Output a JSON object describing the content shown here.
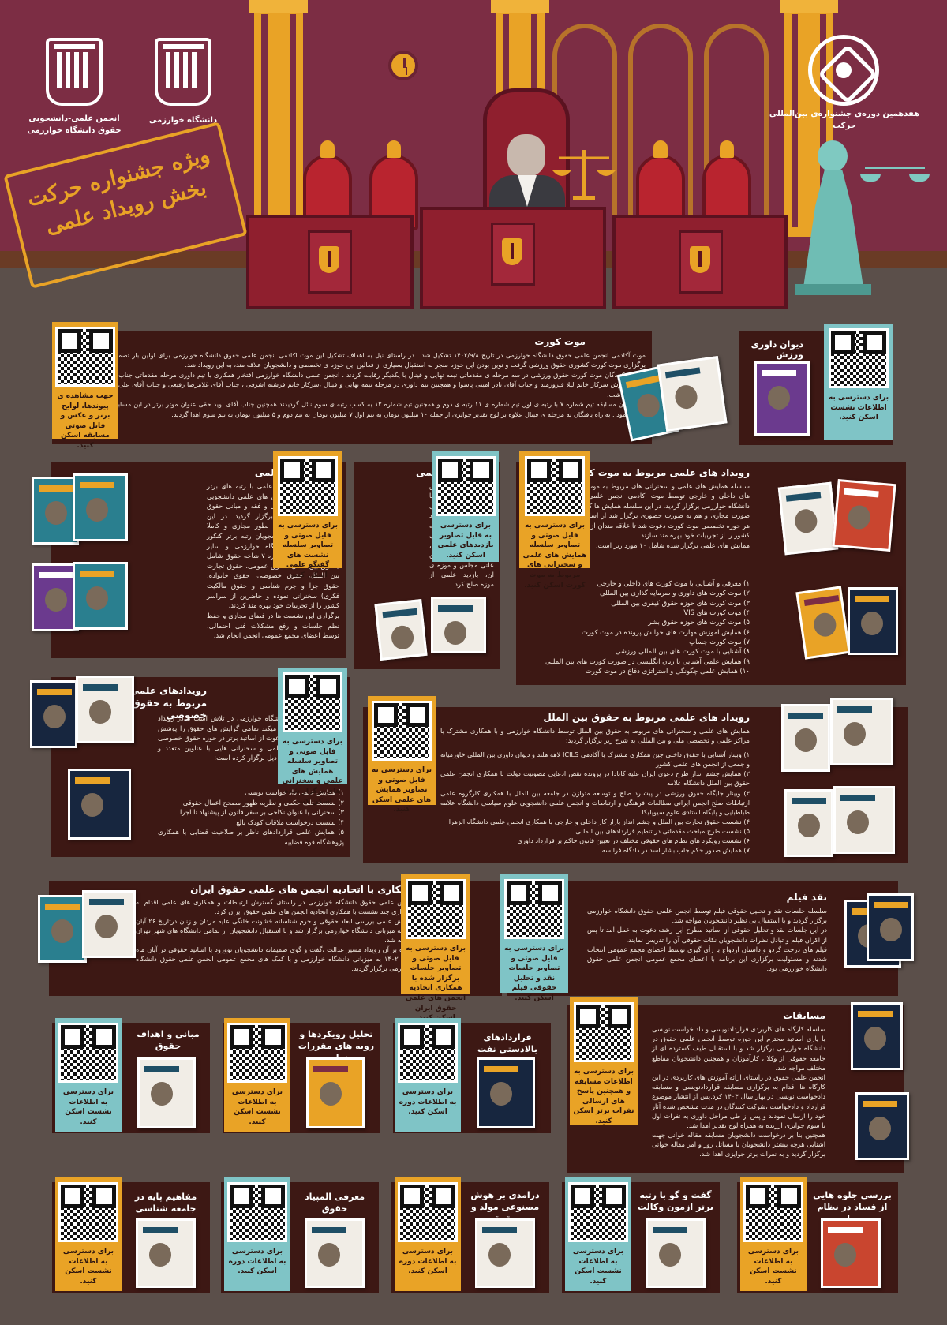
{
  "header": {
    "logo_left_caption": "انجمن علمی-دانشجویی\nحقوق دانشگاه خوارزمی",
    "logo_mid_caption": "دانشگاه خوارزمی",
    "logo_right_caption": "هفدهمین دوره‌ی جشنواره‌ی بین‌المللی حرکت",
    "stamp_line1": "ویژه جشنواره حرکت",
    "stamp_line2": "بخش رویداد علمی"
  },
  "moot": {
    "title": "موت کورت",
    "body": "موت آکادمی انجمن علمی حقوق دانشگاه خوارزمی در تاریخ ۱۴۰۲/۹/۸ تشکیل شد . در راستای نیل به اهداف تشکیل این موت اکادمی انجمن علمی حقوق دانشگاه خوارزمی برای اولین بار تصمیم به برگزاری موت کورت کشوری حقوق ورزشی گرفت و نوین بودن این حوزه منجر به استقبال بسیاری از فعالین این حوزه ی تخصصی و دانشجویان علاقه مند، به این رویداد شد.\nشرکت کنندگان موت کورت حقوق ورزشی در سه مرحله ی مقدماتی نیمه نهایی و فینال با یکدیگر رقابت کردند . انجمن علمی دانشگاه خوارزمی افتخار همکاری با تیم داوری مرحله مقدماتی جناب آقای صابر سروش سرکار خانم لیلا فیروزمند و جناب آقای نادر امینی پاسوا و همچنین تیم داوری در مرحله نیمه نهایی و فینال ،سرکار خانم فرشته اشرفی ، جناب آقای غلامرضا رفیعی و جناب آقای علی ملیح زاده را داشت.\nبرگزیدگان مسابقه تیم شماره ۷ با رتبه ی اول تیم شماره ی ۱۱ رتبه ی دوم و همچنین تیم شماره ۱۲ به کسب رتبه ی سوم نائل گردیدند همچنین جناب آقای نوید حقی عنوان موتر برتر در این مسابقه را کسب نمود . به راه یافتگان به مرحله ی فینال علاوه بر لوح تقدیر جوایزی از جمله ۱۰ میلیون تومان به تیم اول ۷ میلیون تومان به تیم دوم و ۵ میلیون تومان به تیم سوم اهدا گردید.",
    "qr_caption": "جهت مشاهده ی پیوندها، لوایح برتر و عکس و فایل صوتی مسابقه اسکن کنید."
  },
  "sport_court": {
    "title": "دیوان داوری ورزش",
    "qr_caption": "برای دسترسی به اطلاعات نشست اسکن کنید."
  },
  "moot_events": {
    "title": "رویداد های علمی مربوط به موت کورت",
    "intro": "سلسله همایش های علمی و سخنرانی های مربوط به موت کورت های داخلی و خارجی توسط موت اکادمی انجمن علمی حقوق دانشگاه خوارزمی برگزار گردید. در این سلسله همایش ها که هم به صورت مجازی و هم به صورت حضوری برگزار شد از اساتید برتر هر حوزه تخصصی موت کورت دعوت شد تا علاقه مندان از سراسر کشور را از تجربیات خود بهره مند سازند.\nهمایش های علمی برگزار شده شامل ۱۰ مورد زیر است:",
    "items": [
      "۱) معرفی و آشنایی با موت کورت های داخلی و خارجی",
      "۲) موت کورت های داوری و سرمایه گذاری بین المللی",
      "۳) موت کورت های حوزه حقوق کیفری بین المللی",
      "۴) موت کورت های VIS",
      "۵) موت کورت های حوزه حقوق بشر",
      "۶) همایش اموزش مهارت های خوانش پرونده در موت کورت",
      "۷) موت کورت جساپ",
      "۸) آشنایی با موت کورت های بین المللی ورزشی",
      "۹) همایش علمی آشنایی با زبان انگلیسی در صورت کورت های بین المللی",
      "۱۰) همایش علمی چگونگی و استراتژی دفاع در موت کورت"
    ],
    "qr_caption": "برای دسترسی به فایل صوتی و تصاویر سلسله همایش های علمی و سخنرانی های مربوط به موت کورت اسکن کنید."
  },
  "visits": {
    "title": "بازدید های علمی",
    "body": "انجمن علمی حقوق دانشگاه خوارزمی با همکاری مراکز تخصصی اقدام به برگزاری چند بازدید علمی از جمله بازدید علمی از پزشکی قانونی استان تهران ، بازدید علمی از صحن علنی مجلس و موزه ی آن، بازدید علمی از موزه صلح کرد.",
    "qr_caption": "برای دسترسی به فایل تصاویر بازدیدهای علمی اسکن کنید."
  },
  "talks": {
    "title": "گفت و گوی علمی",
    "body": "سلسله گفت و گوهای علمی با رتبه های برتر کنکور با همکاری انجمن های علمی دانشجویی حقوق دانشگاه خوارزمی و فقه و مبانی حقوق اسلامی دانشگاه قم برگزار گردید. در این سلسله نشست ها که بطور مجازی و کاملا رایگان برگزار شد دانشجویان رتبه برتر کنکور ارشد حقوق از دانشگاه خوارزمی و سایر دانشگاه های کشور درباره ۷ شاخه حقوق شامل (حقوق بین الملل، حقوق عمومی، حقوق تجارت بین الملل، حقوق خصوصی، حقوق خانواده، حقوق جزا و جرم شناسی و حقوق مالکیت فکری) سخنرانی نموده و حاضرین از سراسر کشور را از تجربیات خود بهره مند کردند.\nبرگزاری این نشست ها در فضای مجازی و حفظ نظم جلسات و رفع مشکلات فنی احتمالی، توسط اعضای مجمع عمومی انجمن انجام شد.",
    "qr_caption": "برای دسترسی به فایل صوتی و تصاویر سلسله نشست های گفتگو علمی اسکن کنید."
  },
  "private_law": {
    "title": "رویدادهای علمی مربوط به حقوق خصوصی",
    "body": "انجمن علمی حقوق دانشگاه خوارزمی در تلاش است تا در رویداد های متفاوتی که برگزار میکند تمامی گرایش های حقوق را پوشش دهد. در همین راستا با دعوت از اساتید برتر در حوزه حقوق خصوصی سلسله همایش های علمی و سخنرانی هایی با عناوین متعدد و مباحث کاربردی به شرح ذیل برگزار کرده است:",
    "items": [
      "۱) همایش علمی داد خواست نویسی",
      "۲) نشست تلف حکمی و نظریه ظهور مصحح اعمال حقوقی",
      "۳) سخنرانی با عنوان نکاحی بر سفر قانون از پیشنهاد تا اجرا",
      "۴) نشست درخواست ملاقات کودک بالغ",
      "۵) همایش علمی قراردادهای ناظر بر صلاحیت قضایی با همکاری پژوهشگاه قوه قضاییه"
    ],
    "qr_caption": "برای دسترسی به فایل صوتی و تصاویر سلسله همایش های علمی و سخنرانی های برگزار شده اسکن کنید."
  },
  "intl_law": {
    "title": "رویداد های علمی مربوط به حقوق بین الملل",
    "intro": "همایش های علمی و سخنرانی های مربوط به حقوق بین الملل توسط دانشگاه خوارزمی و با همکاری مشترک با مراکز علمی و تخصصی ملی و بین المللی به شرح زیر برگزار گردید:",
    "items": [
      "۱) وبینار آشنایی با حقوق داخلی چین همکاری مشترک با آکادمی ICILS لاهه هلند و دیوان داوری بین المللی خاورمیانه و جمعی از انجمن های علمی کشور",
      "۲) همایش چشم انداز طرح دعوی ایران علیه کانادا در پرونده نقض ادعایی مصونیت دولت با همکاری انجمن علمی حقوق بین الملل دانشگاه علامه",
      "۳) وبینار جایگاه حقوق ورزشی در پیشبرد صلح و توسعه متوازن در جامعه بین الملل با همکاری کارگروه علمی ارتباطات صلح انجمن ایرانی مطالعات فرهنگی و ارتباطات و انجمن علمی دانشجویی علوم سیاسی دانشگاه علامه طباطبایی و پایگاه استادی علوم سیوپلیکا",
      "۴) نشست حقوق تجارت بین الملل و چشم انداز بازار کار داخلی و خارجی با همکاری انجمن علمی دانشگاه الزهرا",
      "۵) نشست طرح مباحث مقدماتی در تنظیم قراردادهای بین المللی",
      "۶) نشست رویکرد های نظام های حقوقی مختلف در تعیین قانون حاکم بر قرارداد داوری",
      "۷) همایش صدور حکم جلب بشار اسد در دادگاه فرانسه"
    ],
    "qr_caption": "برای دسترسی به فایل صوتی و تصاویر همایش های علمی اسکن کنید."
  },
  "federation": {
    "title": "همکاری با اتحادیه انجمن های علمی حقوق ایران",
    "body": "انجمن علمی حقوق دانشگاه خوارزمی در راستای گسترش ارتباطات و همکاری های علمی اقدام به برگزاری چند نشست با همکاری اتحادیه انجمن های علمی حقوق ایران کرد.\nهمایش علمی بررسی ابعاد حقوقی و جرم شناسانه خشونت خانگی علیه مردان و زنان درتاریخ ۲۶ آبان ماه به میزبانی دانشگاه خوارزمی برگزار شد و با استقبال دانشجویان از تمامی دانشگاه های شهر تهران مواجه شد.\nعلاوه بر آن رویداد مسیر عدالت ،گفت و گوی صمیمانه دانشجویان نوورود با اساتید حقوقی در آبان ماه سال ۱۴۰۲ به میزبانی دانشگاه خوارزمی و با کمک های مجمع عمومی انجمن علمی حقوق دانشگاه خوارزمی برگزار گردید.",
    "qr_caption": "برای دسترسی به فایل صوتی و تصاویر جلسات برگزار شده با همکاری اتحادیه انجمن های علمی حقوق ایران اسکن کنید."
  },
  "film": {
    "title": "نقد فیلم",
    "body": "سلسله جلسات نقد و تحلیل حقوقی فیلم توسط انجمن علمی حقوق دانشگاه خوارزمی برگزار گردید و با استقبال بی نظیر دانشجویان مواجه شد.\nدر این جلسات نقد و تحلیل حقوقی از اساتید مطرح این رشته دعوت به عمل امد تا پس از اکران فیلم و تبادل نظرات دانشجویان نکات حقوقی آن را تدریس نمایند.\nفیلم های درخت گردو و داستان ازدواج با رأی گیری توسط اعضای مجمع عمومی انتخاب شدند و مسئولیت برگزاری این برنامه با اعضای مجمع عمومی انجمن علمی حقوق دانشگاه خوارزمی بود.",
    "qr_caption": "برای دسترسی به فایل صوتی و تصاویر جلسات نقد و تحلیل حقوقی فیلم اسکن کنید."
  },
  "contests": {
    "title": "مسابقات",
    "body": "سلسله کارگاه های کاربردی قراردادنویسی و داد خواست نویسی با یاری اساتید محترم این حوزه توسط انجمن علمی حقوق در دانشگاه خوارزمی برگزار شد و با استقبال طیف گسترده ای از جامعه حقوقی از وکلا ، کارآموزان و همچنین دانشجویان مقاطع مختلف مواجه شد.\nانجمن علمی حقوق در راستای ارائه آموزش های کاربردی در این کارگاه ها اقدام به برگزاری مسابقه قراردادنویسی و مسابقه دادخواست نویسی در بهار سال ۱۴۰۳ کرد.پس از انتشار موضوع قرارداد و دادخواست ،شرکت کنندگان در مدت مشخص شده آثار خود را ارسال نمودند و پس از طی مراحل داوری به نفرات اول تا سوم جوایزی ارزنده به همراه لوح تقدیر اهدا شد.\nهمچنین بنا بر درخواست دانشجویان مسابقه مقاله خوانی جهت اشنایی هرچه بیشتر دانشجویان با مسائل روز و امر مقاله خوانی برگزار گردید و به نفرات برتر جوایزی اهدا شد.",
    "qr_caption": "برای دسترسی به اطلاعات مسابقه و همچنین پاسخ های ارسالی نفرات برتر اسکن کنید."
  },
  "row_a": [
    {
      "title": "مبانی و اهداف حقوق",
      "qr_caption": "برای دسترسی به اطلاعات نشست اسکن کنید.",
      "thumb": "مبانی و اهداف حقوق"
    },
    {
      "title": "تحلیل رویکردها و رویه های مقررات زدایی",
      "qr_caption": "برای دسترسی به اطلاعات نشست اسکن کنید.",
      "thumb": ""
    },
    {
      "title": "قراردادهای بالادستی نفت",
      "qr_caption": "برای دسترسی به اطلاعات دوره اسکن کنید.",
      "thumb": ""
    }
  ],
  "row_b": [
    {
      "title": "مفاهیم پایه در جامعه شناسی حقوق",
      "qr_caption": "برای دسترسی به اطلاعات نشست اسکن کنید."
    },
    {
      "title": "معرفی المپیاد حقوق",
      "qr_caption": "برای دسترسی به اطلاعات دوره اسکن کنید."
    },
    {
      "title": "درامدی بر هوش مصنوعی مولد و حقوق",
      "qr_caption": "برای دسترسی به اطلاعات دوره اسکن کنید."
    },
    {
      "title": "گفت و گو با رتبه برتر ازمون وکالت",
      "qr_caption": "برای دسترسی به اطلاعات نشست اسکن کنید."
    },
    {
      "title": "بررسی جلوه هایی از فساد در نظام درمان",
      "qr_caption": "برای دسترسی به اطلاعات نشست اسکن کنید."
    }
  ],
  "colors": {
    "background": "#5b4f4a",
    "wall": "#7c2d44",
    "card": "#3d1814",
    "accent_orange": "#e9a326",
    "accent_teal": "#7fc4c6"
  }
}
